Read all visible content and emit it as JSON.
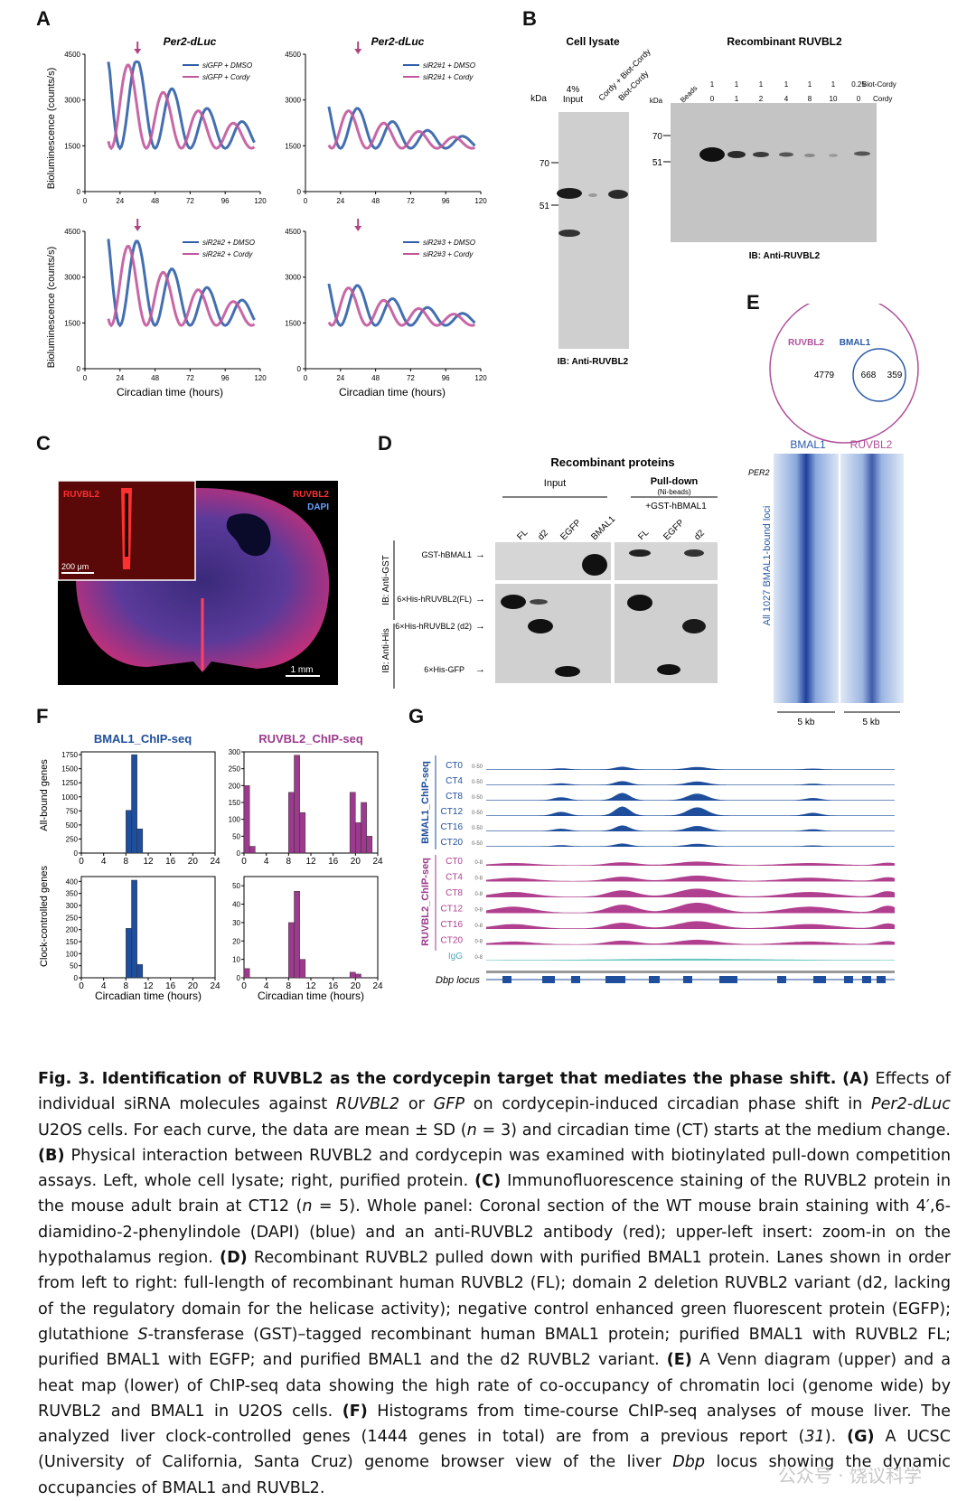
{
  "panels": {
    "a": "A",
    "b": "B",
    "c": "C",
    "d": "D",
    "e": "E",
    "f": "F",
    "g": "G"
  },
  "panelA": {
    "title_left": "Per2-dLuc",
    "title_right": "Per2-dLuc",
    "ylabel": "Bioluminescence (counts/s)",
    "xlabel": "Circadian time (hours)",
    "yticks": [
      "0",
      "1500",
      "3000",
      "4500"
    ],
    "xticks": [
      "0",
      "24",
      "48",
      "72",
      "96",
      "120"
    ],
    "legends": [
      [
        "siGFP + DMSO",
        "siGFP + Cordy"
      ],
      [
        "siR2#1 + DMSO",
        "siR2#1 + Cordy"
      ],
      [
        "siR2#2 + DMSO",
        "siR2#2 + Cordy"
      ],
      [
        "siR2#3 + DMSO",
        "siR2#3 + Cordy"
      ]
    ],
    "colors": {
      "dmso": "#2f5fa8",
      "cordy": "#c2569b",
      "arrow": "#b0447f"
    }
  },
  "panelB": {
    "left_title": "Cell lysate",
    "right_title": "Recombinant RUVBL2",
    "kda": "kDa",
    "mw_left": [
      "70",
      "51"
    ],
    "mw_right": [
      "70",
      "51"
    ],
    "left_lanes": [
      "4%\nInput",
      "Cordy + Biot-Cordy",
      "Biot-Cordy"
    ],
    "input_l1": "4%",
    "input_l2": "Input",
    "rot1": "Cordy + Biot-Cordy",
    "rot2": "Biot-Cordy",
    "beads": "Beads",
    "biot_row": [
      "1",
      "1",
      "1",
      "1",
      "1",
      "1",
      "0.25"
    ],
    "cordy_row": [
      "0",
      "1",
      "2",
      "4",
      "8",
      "10",
      "0"
    ],
    "biot_label": "Biot-Cordy",
    "cordy_label": "Cordy",
    "ib_left": "IB: Anti-RUVBL2",
    "ib_right": "IB: Anti-RUVBL2"
  },
  "panelC": {
    "label_red": "RUVBL2",
    "label_red2": "RUVBL2",
    "label_dapi": "DAPI",
    "scale_small": "200 μm",
    "scale_big": "1 mm"
  },
  "panelD": {
    "title": "Recombinant proteins",
    "input": "Input",
    "pulldown": "Pull-down",
    "nibeads": "(Ni-beads)",
    "gst": "+GST-hBMAL1",
    "lanes_in": [
      "FL",
      "d2",
      "EGFP",
      "BMAL1"
    ],
    "lanes_pd": [
      "FL",
      "EGFP",
      "d2"
    ],
    "ib_gst": "IB: Anti-GST",
    "ib_his": "IB: Anti-His",
    "row1": "GST-hBMAL1",
    "row2": "6×His-hRUVBL2(FL)",
    "row3": "6×His-hRUVBL2 (d2)",
    "row4": "6×His-GFP"
  },
  "panelE": {
    "venn_left": "RUVBL2",
    "venn_right": "BMAL1",
    "n_left": "4779",
    "n_mid": "668",
    "n_right": "359",
    "hm_left": "BMAL1",
    "hm_right": "RUVBL2",
    "per2": "PER2",
    "side": "All 1027 BMAL1-bound loci",
    "kb1": "5 kb",
    "kb2": "5 kb"
  },
  "panelF": {
    "title_left": "BMAL1_ChIP-seq",
    "title_right": "RUVBL2_ChIP-seq",
    "ylabel_top": "All-bound genes",
    "ylabel_bottom": "Clock-controlled genes",
    "xlabel": "Circadian time (hours)",
    "xticks": [
      "0",
      "4",
      "8",
      "12",
      "16",
      "20",
      "24"
    ]
  },
  "chart_data": [
    {
      "type": "bar",
      "title": "BMAL1_ChIP-seq",
      "ylabel": "All-bound genes",
      "xlabel": "",
      "x": [
        8,
        9,
        10
      ],
      "values": [
        760,
        1750,
        430
      ],
      "ylim": [
        0,
        1800
      ],
      "yticks": [
        0,
        250,
        500,
        750,
        1000,
        1250,
        1500,
        1750
      ],
      "color": "#1f4e9c"
    },
    {
      "type": "bar",
      "title": "RUVBL2_ChIP-seq",
      "ylabel": "",
      "xlabel": "",
      "x": [
        0,
        1,
        8,
        9,
        10,
        19,
        20,
        21,
        22
      ],
      "values": [
        200,
        20,
        180,
        290,
        120,
        180,
        90,
        150,
        50
      ],
      "ylim": [
        0,
        300
      ],
      "yticks": [
        0,
        50,
        100,
        150,
        200,
        250,
        300
      ],
      "color": "#9c3b8d"
    },
    {
      "type": "bar",
      "title": "",
      "ylabel": "Clock-controlled genes",
      "xlabel": "Circadian time (hours)",
      "x": [
        8,
        9,
        10
      ],
      "values": [
        205,
        405,
        55
      ],
      "ylim": [
        0,
        420
      ],
      "yticks": [
        0,
        50,
        100,
        150,
        200,
        250,
        300,
        350,
        400
      ],
      "color": "#1f4e9c"
    },
    {
      "type": "bar",
      "title": "",
      "ylabel": "",
      "xlabel": "Circadian time (hours)",
      "x": [
        0,
        8,
        9,
        10,
        19,
        20
      ],
      "values": [
        5,
        30,
        47,
        10,
        3,
        2
      ],
      "ylim": [
        0,
        55
      ],
      "yticks": [
        0,
        10,
        20,
        30,
        40,
        50
      ],
      "color": "#9c3b8d"
    }
  ],
  "panelG": {
    "group1": "BMAL1_ChIP-seq",
    "group2": "RUVBL2_ChIP-seq",
    "bmal_tracks": [
      "CT0",
      "CT4",
      "CT8",
      "CT12",
      "CT16",
      "CT20"
    ],
    "ruv_tracks": [
      "CT0",
      "CT4",
      "CT8",
      "CT12",
      "CT16",
      "CT20"
    ],
    "igg": "IgG",
    "range1": "0-50",
    "range2": "0-8",
    "locus": "Dbp locus"
  },
  "caption": {
    "head": "Fig. 3. Identification of RUVBL2 as the cordycepin target that mediates the phase shift.",
    "a": "(A)",
    "a_txt": " Effects of individual siRNA molecules against ",
    "ruvbl2": "RUVBL2",
    "or": " or ",
    "gfp": "GFP",
    "a_txt2": " on cordycepin-induced circadian phase shift in ",
    "per2": "Per2-dLuc",
    "a_txt3": " U2OS cells. For each curve, the data are mean ± SD (",
    "n3": "n",
    "a_txt4": " = 3) and circadian time (CT) starts at the medium change. ",
    "b": "(B)",
    "b_txt": " Physical interaction between RUVBL2 and cordycepin was examined with biotinylated pull-down competition assays. Left, whole cell lysate; right, purified protein. ",
    "c": "(C)",
    "c_txt": " Immunofluorescence staining of the RUVBL2 protein in the mouse adult brain at CT12 (",
    "n5": "n",
    "c_txt2": " = 5). Whole panel: Coronal section of the WT mouse brain staining with 4′,6-diamidino-2-phenylindole (DAPI) (blue) and an anti-RUVBL2 antibody (red); upper-left insert: zoom-in on the hypothalamus region. ",
    "d": "(D)",
    "d_txt": " Recombinant RUVBL2 pulled down with purified BMAL1 protein. Lanes shown in order from left to right: full-length of recombinant human RUVBL2 (FL); domain 2 deletion RUVBL2 variant (d2, lacking of the regulatory domain for the helicase activity); negative control enhanced green fluorescent protein (EGFP); glutathione ",
    "s": "S",
    "d_txt2": "-transferase (GST)–tagged recombinant human BMAL1 protein; purified BMAL1 with RUVBL2 FL; purified BMAL1 with EGFP; and purified BMAL1 and the d2 RUVBL2 variant. ",
    "e": "(E)",
    "e_txt": " A Venn diagram (upper) and a heat map (lower) of ChIP-seq data showing the high rate of co-occupancy of chromatin loci (genome wide) by RUVBL2 and BMAL1 in U2OS cells. ",
    "f": "(F)",
    "f_txt": " Histograms from time-course ChIP-seq analyses of mouse liver. The analyzed liver clock-controlled genes (1444 genes in total) are from a previous report (",
    "ref": "31",
    "f_txt2": "). ",
    "g": "(G)",
    "g_txt": " A UCSC (University of California, Santa Cruz) genome browser view of the liver ",
    "dbp": "Dbp",
    "g_txt2": " locus showing the dynamic occupancies of BMAL1 and RUVBL2."
  },
  "watermark": "公众号 · 饶议科学"
}
